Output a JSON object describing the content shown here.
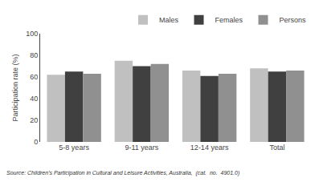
{
  "chart_data": {
    "type": "bar",
    "categories": [
      "5-8 years",
      "9-11 years",
      "12-14 years",
      "Total"
    ],
    "series": [
      {
        "name": "Males",
        "color": "#c0c0c0",
        "values": [
          62,
          75,
          66,
          68
        ]
      },
      {
        "name": "Females",
        "color": "#404040",
        "values": [
          65,
          70,
          61,
          65
        ]
      },
      {
        "name": "Persons",
        "color": "#909090",
        "values": [
          63,
          72,
          63,
          66
        ]
      }
    ],
    "ylabel": "Participation rate (%)",
    "ylim": [
      0,
      100
    ],
    "yticks": [
      0,
      20,
      40,
      60,
      80,
      100
    ],
    "legend": "upper right",
    "grid": false,
    "annotations": [
      "Source: Children's Participation in Cultural and Leisure Activities, Australia,  (cat.  no.  4901.0)"
    ]
  }
}
